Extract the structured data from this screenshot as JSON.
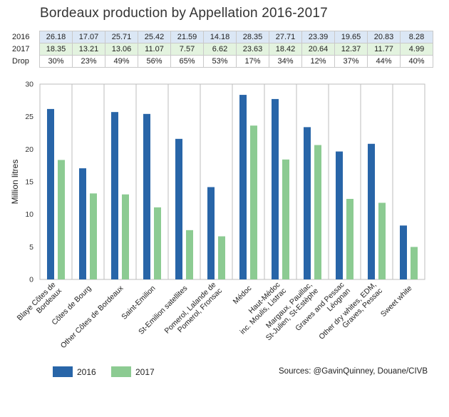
{
  "title": "Bordeaux production by Appellation 2016-2017",
  "table": {
    "rows": [
      {
        "label": "2016",
        "values": [
          "26.18",
          "17.07",
          "25.71",
          "25.42",
          "21.59",
          "14.18",
          "28.35",
          "27.71",
          "23.39",
          "19.65",
          "20.83",
          "8.28"
        ]
      },
      {
        "label": "2017",
        "values": [
          "18.35",
          "13.21",
          "13.06",
          "11.07",
          "7.57",
          "6.62",
          "23.63",
          "18.42",
          "20.64",
          "12.37",
          "11.77",
          "4.99"
        ]
      },
      {
        "label": "Drop",
        "values": [
          "30%",
          "23%",
          "49%",
          "56%",
          "65%",
          "53%",
          "17%",
          "34%",
          "12%",
          "37%",
          "44%",
          "40%"
        ]
      }
    ]
  },
  "legend": [
    {
      "label": "2016",
      "color": "#2865a8"
    },
    {
      "label": "2017",
      "color": "#8ccb92"
    }
  ],
  "source": "Sources: @GavinQuinney, Douane/CIVB",
  "chart_data": {
    "type": "bar",
    "title": "Bordeaux production by Appellation 2016-2017",
    "ylabel": "Million litres",
    "xlabel": "",
    "ylim": [
      0,
      30
    ],
    "yticks": [
      0,
      5,
      10,
      15,
      20,
      25,
      30
    ],
    "grid": "vertical category separators",
    "legend_position": "bottom-left",
    "categories": [
      [
        "Blaye Côtes de",
        "Bordeaux"
      ],
      [
        "Côtes de Bourg"
      ],
      [
        "Other Côtes de Bordeaux"
      ],
      [
        "Saint-Emilion"
      ],
      [
        "St-Emilion satellites"
      ],
      [
        "Pomerol, Lalande de",
        "Pomerol, Fronsac"
      ],
      [
        "Médoc"
      ],
      [
        "Haut-Médoc",
        "inc. Moulis, Listrac"
      ],
      [
        "Margaux, Pauillac,",
        "St-Julien, St-Estèphe"
      ],
      [
        "Graves and Pessac",
        "Léognan"
      ],
      [
        "Other dry whites, EDM,",
        "Graves, Pessac"
      ],
      [
        "Sweet white"
      ]
    ],
    "series": [
      {
        "name": "2016",
        "color": "#2865a8",
        "values": [
          26.18,
          17.07,
          25.71,
          25.42,
          21.59,
          14.18,
          28.35,
          27.71,
          23.39,
          19.65,
          20.83,
          8.28
        ]
      },
      {
        "name": "2017",
        "color": "#8ccb92",
        "values": [
          18.35,
          13.21,
          13.06,
          11.07,
          7.57,
          6.62,
          23.63,
          18.42,
          20.64,
          12.37,
          11.77,
          4.99
        ]
      }
    ]
  }
}
